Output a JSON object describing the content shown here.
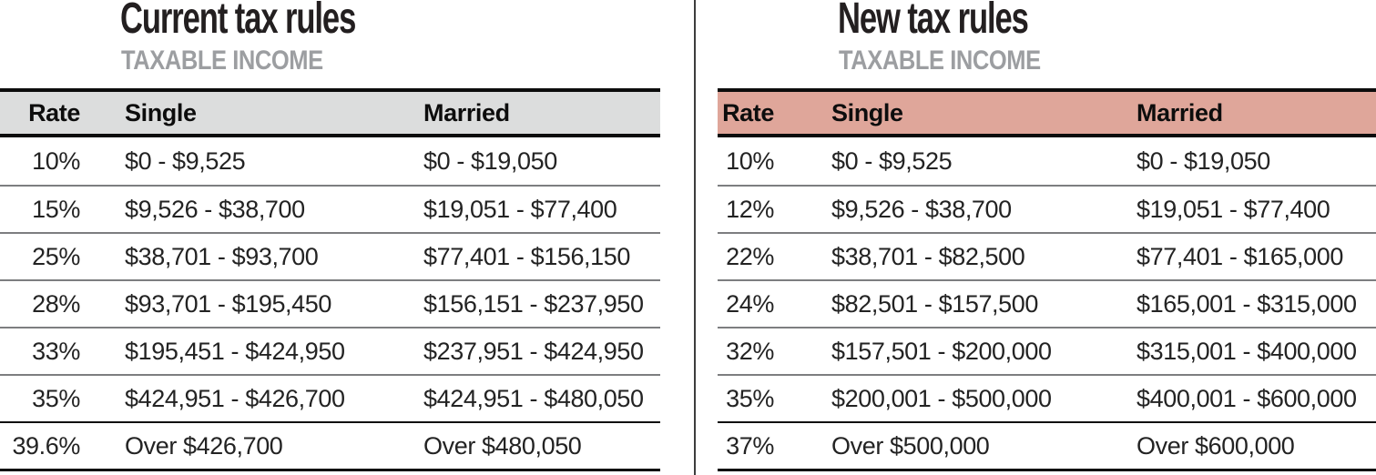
{
  "graphic": {
    "description": "Side-by-side comparison of current and new federal income tax brackets",
    "divider_color": "#3d3d3d",
    "title_color": "#231f20",
    "subtitle_color": "#9c9ea1"
  },
  "tables": [
    {
      "title": "Current tax rules",
      "subtitle": "TAXABLE INCOME",
      "header_bg": "#dcdddd",
      "columns": {
        "rate": "Rate",
        "single": "Single",
        "married": "Married"
      },
      "rows": [
        {
          "rate": "10%",
          "single": "$0 - $9,525",
          "married": "$0 - $19,050"
        },
        {
          "rate": "15%",
          "single": "$9,526 - $38,700",
          "married": "$19,051 - $77,400"
        },
        {
          "rate": "25%",
          "single": "$38,701 - $93,700",
          "married": "$77,401 - $156,150"
        },
        {
          "rate": "28%",
          "single": "$93,701 - $195,450",
          "married": "$156,151 - $237,950"
        },
        {
          "rate": "33%",
          "single": "$195,451 - $424,950",
          "married": "$237,951 - $424,950"
        },
        {
          "rate": "35%",
          "single": "$424,951 - $426,700",
          "married": "$424,951 - $480,050"
        },
        {
          "rate": "39.6%",
          "single": "Over $426,700",
          "married": "Over $480,050"
        }
      ]
    },
    {
      "title": "New tax rules",
      "subtitle": "TAXABLE INCOME",
      "header_bg": "#dfa69a",
      "columns": {
        "rate": "Rate",
        "single": "Single",
        "married": "Married"
      },
      "rows": [
        {
          "rate": "10%",
          "single": "$0 - $9,525",
          "married": "$0 - $19,050"
        },
        {
          "rate": "12%",
          "single": "$9,526 - $38,700",
          "married": "$19,051 - $77,400"
        },
        {
          "rate": "22%",
          "single": "$38,701 - $82,500",
          "married": "$77,401 - $165,000"
        },
        {
          "rate": "24%",
          "single": "$82,501 - $157,500",
          "married": "$165,001 - $315,000"
        },
        {
          "rate": "32%",
          "single": "$157,501 - $200,000",
          "married": "$315,001 - $400,000"
        },
        {
          "rate": "35%",
          "single": "$200,001 - $500,000",
          "married": "$400,001 - $600,000"
        },
        {
          "rate": "37%",
          "single": "Over $500,000",
          "married": "Over $600,000"
        }
      ]
    }
  ],
  "chart_data": [
    {
      "type": "table",
      "title": "Current tax rules",
      "subtitle": "TAXABLE INCOME",
      "columns": [
        "Rate",
        "Single",
        "Married"
      ],
      "rows": [
        [
          "10%",
          "$0 - $9,525",
          "$0 - $19,050"
        ],
        [
          "15%",
          "$9,526 - $38,700",
          "$19,051 - $77,400"
        ],
        [
          "25%",
          "$38,701 - $93,700",
          "$77,401 - $156,150"
        ],
        [
          "28%",
          "$93,701 - $195,450",
          "$156,151 - $237,950"
        ],
        [
          "33%",
          "$195,451 - $424,950",
          "$237,951 - $424,950"
        ],
        [
          "35%",
          "$424,951 - $426,700",
          "$424,951 - $480,050"
        ],
        [
          "39.6%",
          "Over $426,700",
          "Over $480,050"
        ]
      ],
      "header_bg": "#dcdddd"
    },
    {
      "type": "table",
      "title": "New tax rules",
      "subtitle": "TAXABLE INCOME",
      "columns": [
        "Rate",
        "Single",
        "Married"
      ],
      "rows": [
        [
          "10%",
          "$0 - $9,525",
          "$0 - $19,050"
        ],
        [
          "12%",
          "$9,526 - $38,700",
          "$19,051 - $77,400"
        ],
        [
          "22%",
          "$38,701 - $82,500",
          "$77,401 - $165,000"
        ],
        [
          "24%",
          "$82,501 - $157,500",
          "$165,001 - $315,000"
        ],
        [
          "32%",
          "$157,501 - $200,000",
          "$315,001 - $400,000"
        ],
        [
          "35%",
          "$200,001 - $500,000",
          "$400,001 - $600,000"
        ],
        [
          "37%",
          "Over $500,000",
          "Over $600,000"
        ]
      ],
      "header_bg": "#dfa69a"
    }
  ]
}
